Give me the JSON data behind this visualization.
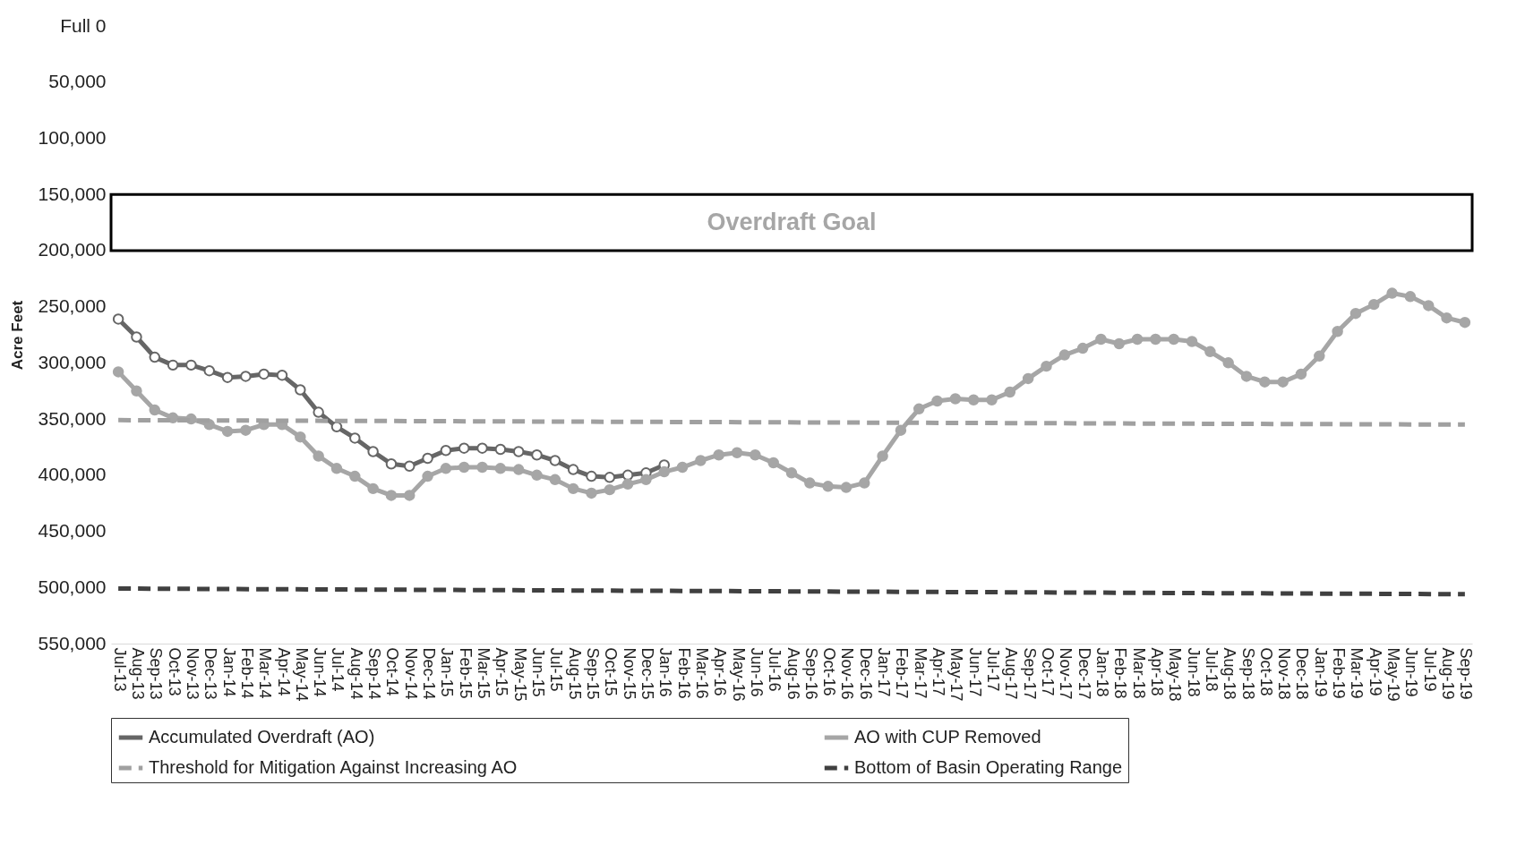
{
  "chart_data": {
    "type": "line",
    "ylabel": "Acre Feet",
    "categories": [
      "Jul-13",
      "Aug-13",
      "Sep-13",
      "Oct-13",
      "Nov-13",
      "Dec-13",
      "Jan-14",
      "Feb-14",
      "Mar-14",
      "Apr-14",
      "May-14",
      "Jun-14",
      "Jul-14",
      "Aug-14",
      "Sep-14",
      "Oct-14",
      "Nov-14",
      "Dec-14",
      "Jan-15",
      "Feb-15",
      "Mar-15",
      "Apr-15",
      "May-15",
      "Jun-15",
      "Jul-15",
      "Aug-15",
      "Sep-15",
      "Oct-15",
      "Nov-15",
      "Dec-15",
      "Jan-16",
      "Feb-16",
      "Mar-16",
      "Apr-16",
      "May-16",
      "Jun-16",
      "Jul-16",
      "Aug-16",
      "Sep-16",
      "Oct-16",
      "Nov-16",
      "Dec-16",
      "Jan-17",
      "Feb-17",
      "Mar-17",
      "Apr-17",
      "May-17",
      "Jun-17",
      "Jul-17",
      "Aug-17",
      "Sep-17",
      "Oct-17",
      "Nov-17",
      "Dec-17",
      "Jan-18",
      "Feb-18",
      "Mar-18",
      "Apr-18",
      "May-18",
      "Jun-18",
      "Jul-18",
      "Aug-18",
      "Sep-18",
      "Oct-18",
      "Nov-18",
      "Dec-18",
      "Jan-19",
      "Feb-19",
      "Mar-19",
      "Apr-19",
      "May-19",
      "Jun-19",
      "Jul-19",
      "Aug-19",
      "Sep-19"
    ],
    "series": [
      {
        "name": "Accumulated Overdraft (AO)",
        "color": "#666666",
        "marker": "circle",
        "values": [
          261000,
          277000,
          295000,
          302000,
          302000,
          307000,
          313000,
          312000,
          310000,
          311000,
          324000,
          344000,
          357000,
          367000,
          379000,
          390000,
          392000,
          385000,
          378000,
          376000,
          376000,
          377000,
          379000,
          382000,
          387000,
          395000,
          401000,
          402000,
          400000,
          398000,
          391000,
          null,
          null,
          null,
          null,
          null,
          null,
          null,
          null,
          null,
          null,
          null,
          null,
          null,
          null,
          null,
          null,
          null,
          null,
          null,
          null,
          null,
          null,
          null,
          null,
          null,
          null,
          null,
          null,
          null,
          null,
          null,
          null,
          null,
          null,
          null,
          null,
          null,
          null,
          null,
          null,
          null,
          null,
          null,
          null
        ]
      },
      {
        "name": "AO with CUP Removed",
        "color": "#a6a6a6",
        "marker": "circle",
        "values": [
          308000,
          325000,
          342000,
          349000,
          350000,
          355000,
          361000,
          360000,
          355000,
          355000,
          366000,
          383000,
          394000,
          401000,
          412000,
          418000,
          418000,
          401000,
          394000,
          393000,
          393000,
          394000,
          395000,
          400000,
          404000,
          412000,
          416000,
          413000,
          408000,
          404000,
          397000,
          393000,
          387000,
          382000,
          380000,
          382000,
          389000,
          398000,
          407000,
          410000,
          411000,
          407000,
          383000,
          360000,
          341000,
          334000,
          332000,
          333000,
          333000,
          326000,
          314000,
          303000,
          293000,
          287000,
          279000,
          283000,
          279000,
          279000,
          279000,
          281000,
          290000,
          300000,
          312000,
          317000,
          317000,
          310000,
          294000,
          272000,
          256000,
          248000,
          238000,
          241000,
          249000,
          260000,
          264000
        ]
      },
      {
        "name": "Threshold for Mitigation Against Increasing AO",
        "color": "#a0a0a0",
        "line_style": "dashed",
        "x": [
          "Jul-13",
          "Sep-19"
        ],
        "values": [
          351000,
          355000
        ]
      },
      {
        "name": "Bottom of Basin Operating Range",
        "color": "#404040",
        "line_style": "dashed",
        "x": [
          "Jul-13",
          "Sep-19"
        ],
        "values": [
          501000,
          506000
        ]
      }
    ],
    "ylim": [
      550000,
      0
    ],
    "yticks": [
      {
        "value": 0,
        "label": "Full 0"
      },
      {
        "value": 50000,
        "label": "50,000"
      },
      {
        "value": 100000,
        "label": "100,000"
      },
      {
        "value": 150000,
        "label": "150,000"
      },
      {
        "value": 200000,
        "label": "200,000"
      },
      {
        "value": 250000,
        "label": "250,000"
      },
      {
        "value": 300000,
        "label": "300,000"
      },
      {
        "value": 350000,
        "label": "350,000"
      },
      {
        "value": 400000,
        "label": "400,000"
      },
      {
        "value": 450000,
        "label": "450,000"
      },
      {
        "value": 500000,
        "label": "500,000"
      },
      {
        "value": 550000,
        "label": "550,000"
      }
    ],
    "bands": [
      {
        "axis": "y",
        "from": 150000,
        "to": 200000,
        "label": "Overdraft Goal",
        "color": "#000000"
      }
    ],
    "grid": false,
    "legend": "bottom"
  }
}
